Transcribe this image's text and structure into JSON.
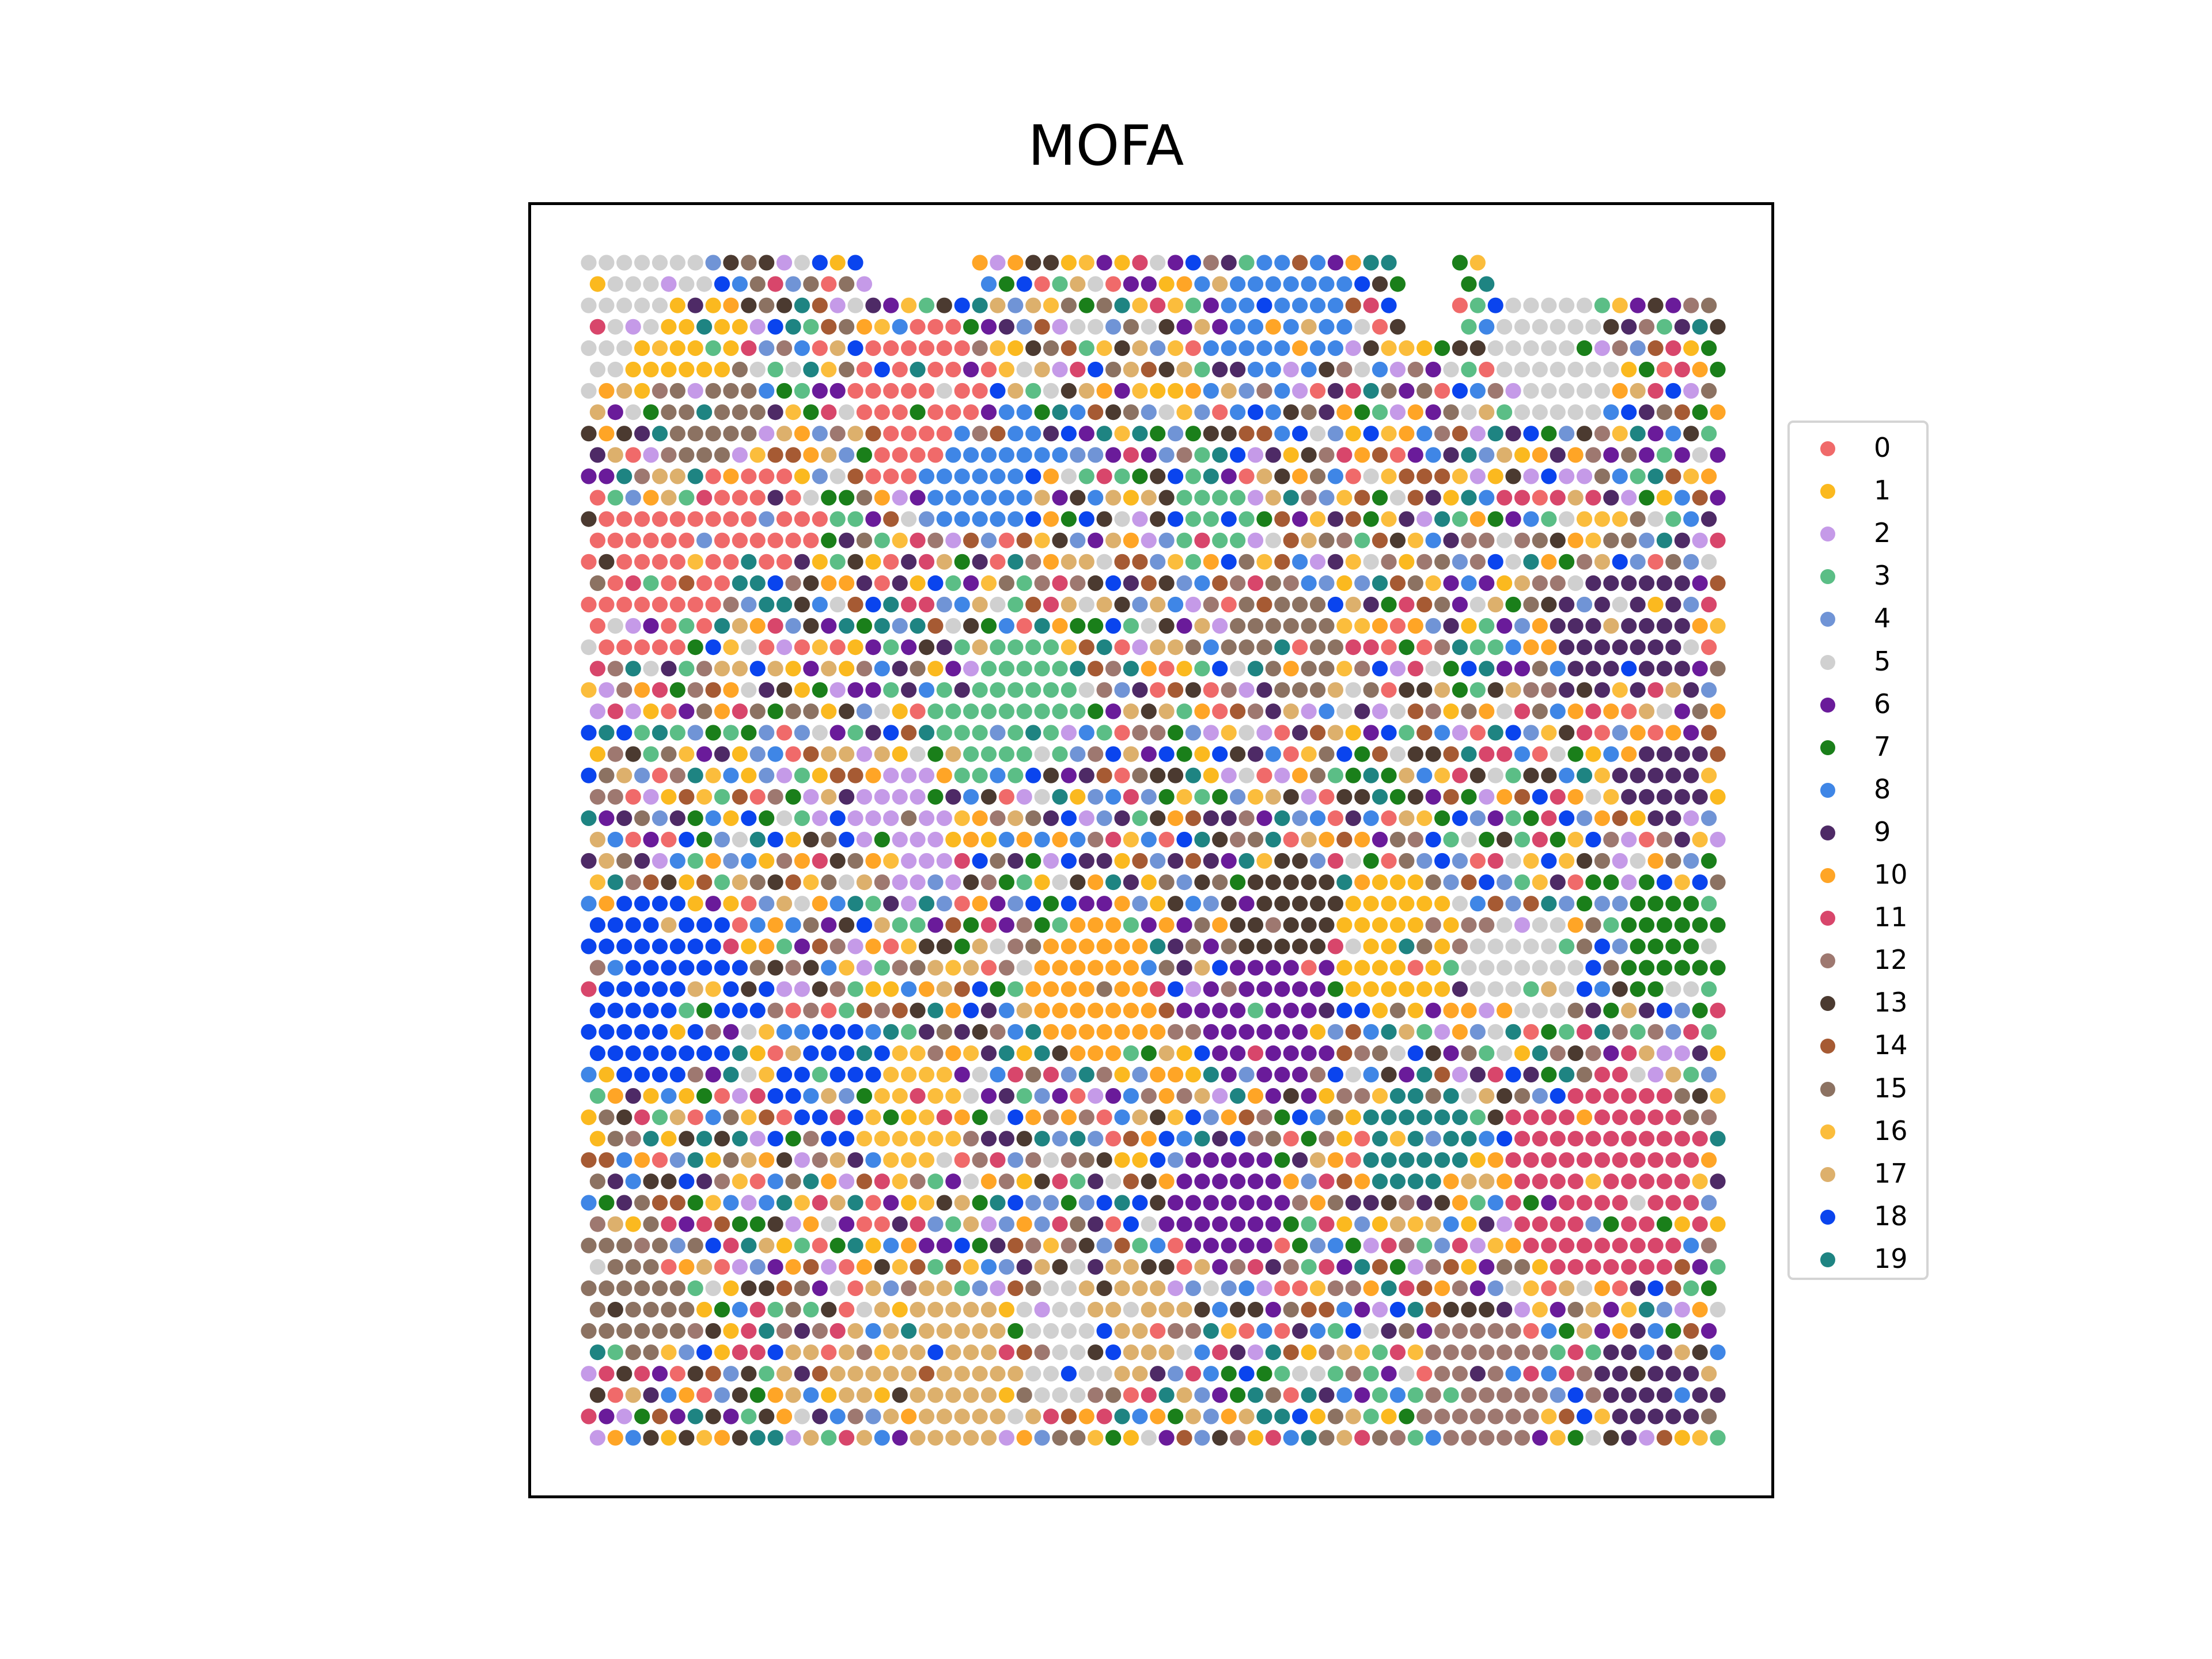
{
  "chart_data": {
    "type": "scatter",
    "title": "MOFA",
    "xlabel": "",
    "ylabel": "",
    "axes_ticks": "none",
    "grid": false,
    "legend_placement": "right",
    "legend": [
      {
        "label": "0",
        "color": "#f06a6a"
      },
      {
        "label": "1",
        "color": "#fbb91f"
      },
      {
        "label": "2",
        "color": "#c59ae8"
      },
      {
        "label": "3",
        "color": "#5bbe86"
      },
      {
        "label": "4",
        "color": "#7094d6"
      },
      {
        "label": "5",
        "color": "#d0d0d0"
      },
      {
        "label": "6",
        "color": "#6a1b9a"
      },
      {
        "label": "7",
        "color": "#1a7f1a"
      },
      {
        "label": "8",
        "color": "#3f86e6"
      },
      {
        "label": "9",
        "color": "#4e2a66"
      },
      {
        "label": "10",
        "color": "#ffa526"
      },
      {
        "label": "11",
        "color": "#d8466b"
      },
      {
        "label": "12",
        "color": "#9e7870"
      },
      {
        "label": "13",
        "color": "#4b3a30"
      },
      {
        "label": "14",
        "color": "#a65a33"
      },
      {
        "label": "15",
        "color": "#8c7262"
      },
      {
        "label": "16",
        "color": "#fbbd3c"
      },
      {
        "label": "17",
        "color": "#ddb06c"
      },
      {
        "label": "18",
        "color": "#0a44ee"
      },
      {
        "label": "19",
        "color": "#1e8482"
      }
    ],
    "grid_shape": {
      "columns": 64,
      "rows": 56
    },
    "regions": [
      {
        "cluster": "5",
        "cx": 0.02,
        "cy": 0.02,
        "r": 0.08
      },
      {
        "cluster": "1",
        "cx": 0.08,
        "cy": 0.08,
        "r": 0.06
      },
      {
        "cluster": "15",
        "cx": 0.1,
        "cy": 0.12,
        "r": 0.05
      },
      {
        "cluster": "0",
        "cx": 0.05,
        "cy": 0.27,
        "r": 0.07
      },
      {
        "cluster": "0",
        "cx": 0.3,
        "cy": 0.12,
        "r": 0.07
      },
      {
        "cluster": "0",
        "cx": 0.16,
        "cy": 0.22,
        "r": 0.05
      },
      {
        "cluster": "8",
        "cx": 0.62,
        "cy": 0.05,
        "r": 0.06
      },
      {
        "cluster": "8",
        "cx": 0.35,
        "cy": 0.17,
        "r": 0.06
      },
      {
        "cluster": "3",
        "cx": 0.37,
        "cy": 0.38,
        "r": 0.07
      },
      {
        "cluster": "3",
        "cx": 0.55,
        "cy": 0.22,
        "r": 0.04
      },
      {
        "cluster": "15",
        "cx": 0.62,
        "cy": 0.32,
        "r": 0.05
      },
      {
        "cluster": "13",
        "cx": 0.62,
        "cy": 0.55,
        "r": 0.05
      },
      {
        "cluster": "1",
        "cx": 0.72,
        "cy": 0.58,
        "r": 0.06
      },
      {
        "cluster": "6",
        "cx": 0.6,
        "cy": 0.65,
        "r": 0.06
      },
      {
        "cluster": "6",
        "cx": 0.57,
        "cy": 0.8,
        "r": 0.05
      },
      {
        "cluster": "5",
        "cx": 0.84,
        "cy": 0.6,
        "r": 0.05
      },
      {
        "cluster": "7",
        "cx": 0.96,
        "cy": 0.58,
        "r": 0.05
      },
      {
        "cluster": "11",
        "cx": 0.91,
        "cy": 0.78,
        "r": 0.09
      },
      {
        "cluster": "19",
        "cx": 0.74,
        "cy": 0.75,
        "r": 0.05
      },
      {
        "cluster": "9",
        "cx": 0.92,
        "cy": 0.32,
        "r": 0.06
      },
      {
        "cluster": "9",
        "cx": 0.96,
        "cy": 0.44,
        "r": 0.04
      },
      {
        "cluster": "18",
        "cx": 0.06,
        "cy": 0.62,
        "r": 0.08
      },
      {
        "cluster": "18",
        "cx": 0.22,
        "cy": 0.7,
        "r": 0.05
      },
      {
        "cluster": "16",
        "cx": 0.28,
        "cy": 0.72,
        "r": 0.05
      },
      {
        "cluster": "10",
        "cx": 0.45,
        "cy": 0.62,
        "r": 0.06
      },
      {
        "cluster": "17",
        "cx": 0.3,
        "cy": 0.95,
        "r": 0.08
      },
      {
        "cluster": "17",
        "cx": 0.48,
        "cy": 0.9,
        "r": 0.05
      },
      {
        "cluster": "5",
        "cx": 0.42,
        "cy": 0.92,
        "r": 0.05
      },
      {
        "cluster": "12",
        "cx": 0.8,
        "cy": 0.96,
        "r": 0.06
      },
      {
        "cluster": "9",
        "cx": 0.95,
        "cy": 0.95,
        "r": 0.05
      },
      {
        "cluster": "15",
        "cx": 0.04,
        "cy": 0.88,
        "r": 0.05
      },
      {
        "cluster": "2",
        "cx": 0.28,
        "cy": 0.48,
        "r": 0.05
      },
      {
        "cluster": "5",
        "cx": 0.86,
        "cy": 0.08,
        "r": 0.06
      }
    ]
  }
}
